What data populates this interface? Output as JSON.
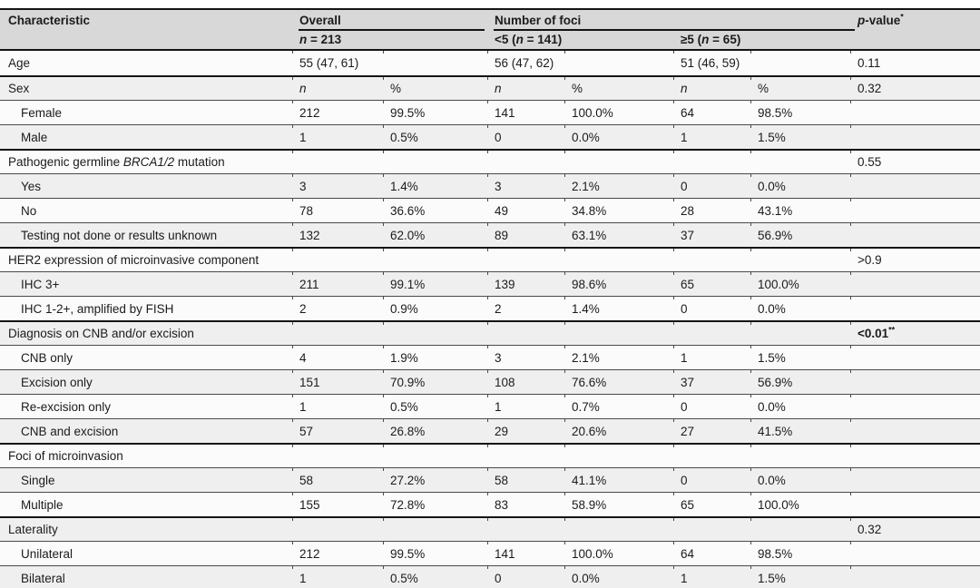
{
  "colors": {
    "header_bg": "#d8d8d8",
    "row_bg": "#fbfbfb",
    "stripe_bg": "#efefef",
    "rule_thin": "#4a4a4a",
    "rule_thick": "#141414",
    "text": "#1b1b1b"
  },
  "table": {
    "header": {
      "characteristic": "Characteristic",
      "overall_label": "Overall",
      "foci_label": "Number of foci",
      "pvalue_parts": [
        {
          "t": "p",
          "i": true
        },
        {
          "t": "-value"
        },
        {
          "t": "*",
          "sup": true
        }
      ],
      "overall_sub_parts": [
        {
          "t": "n",
          "i": true
        },
        {
          "t": " = 213"
        }
      ],
      "lt5_parts": [
        {
          "t": "<5 ("
        },
        {
          "t": "n",
          "i": true
        },
        {
          "t": " = 141)"
        }
      ],
      "ge5_parts": [
        {
          "t": "≥5 ("
        },
        {
          "t": "n",
          "i": true
        },
        {
          "t": " = 65)"
        }
      ]
    },
    "rows": [
      {
        "label": "Age",
        "indent": false,
        "section": false,
        "subhead": false,
        "cells": [
          "55 (47, 61)",
          "",
          "56 (47, 62)",
          "",
          "51 (46, 59)",
          ""
        ],
        "p": {
          "text": "0.11",
          "sup": "",
          "bold": false
        }
      },
      {
        "label": "Sex",
        "indent": false,
        "section": true,
        "subhead": true,
        "cells": [
          "n",
          "%",
          "n",
          "%",
          "n",
          "%"
        ],
        "p": {
          "text": "0.32",
          "sup": "",
          "bold": false
        }
      },
      {
        "label": "Female",
        "indent": true,
        "section": false,
        "subhead": false,
        "cells": [
          "212",
          "99.5%",
          "141",
          "100.0%",
          "64",
          "98.5%"
        ],
        "p": null
      },
      {
        "label": "Male",
        "indent": true,
        "section": false,
        "subhead": false,
        "cells": [
          "1",
          "0.5%",
          "0",
          "0.0%",
          "1",
          "1.5%"
        ],
        "p": null
      },
      {
        "label_parts": [
          {
            "t": "Pathogenic germline "
          },
          {
            "t": "BRCA1/2",
            "i": true
          },
          {
            "t": " mutation"
          }
        ],
        "indent": false,
        "section": true,
        "subhead": false,
        "cells": [
          "",
          "",
          "",
          "",
          "",
          ""
        ],
        "p": {
          "text": "0.55",
          "sup": "",
          "bold": false
        }
      },
      {
        "label": "Yes",
        "indent": true,
        "section": false,
        "subhead": false,
        "cells": [
          "3",
          "1.4%",
          "3",
          "2.1%",
          "0",
          "0.0%"
        ],
        "p": null
      },
      {
        "label": "No",
        "indent": true,
        "section": false,
        "subhead": false,
        "cells": [
          "78",
          "36.6%",
          "49",
          "34.8%",
          "28",
          "43.1%"
        ],
        "p": null
      },
      {
        "label": "Testing not done or results unknown",
        "indent": true,
        "section": false,
        "subhead": false,
        "cells": [
          "132",
          "62.0%",
          "89",
          "63.1%",
          "37",
          "56.9%"
        ],
        "p": null
      },
      {
        "label": "HER2 expression of microinvasive component",
        "indent": false,
        "section": true,
        "subhead": false,
        "cells": [
          "",
          "",
          "",
          "",
          "",
          ""
        ],
        "p": {
          "text": ">0.9",
          "sup": "",
          "bold": false
        }
      },
      {
        "label": "IHC 3+",
        "indent": true,
        "section": false,
        "subhead": false,
        "cells": [
          "211",
          "99.1%",
          "139",
          "98.6%",
          "65",
          "100.0%"
        ],
        "p": null
      },
      {
        "label": "IHC 1-2+, amplified by FISH",
        "indent": true,
        "section": false,
        "subhead": false,
        "cells": [
          "2",
          "0.9%",
          "2",
          "1.4%",
          "0",
          "0.0%"
        ],
        "p": null
      },
      {
        "label": "Diagnosis on CNB and/or excision",
        "indent": false,
        "section": true,
        "subhead": false,
        "cells": [
          "",
          "",
          "",
          "",
          "",
          ""
        ],
        "p": {
          "text": "<0.01",
          "sup": "**",
          "bold": true
        }
      },
      {
        "label": "CNB only",
        "indent": true,
        "section": false,
        "subhead": false,
        "cells": [
          "4",
          "1.9%",
          "3",
          "2.1%",
          "1",
          "1.5%"
        ],
        "p": null
      },
      {
        "label": "Excision only",
        "indent": true,
        "section": false,
        "subhead": false,
        "cells": [
          "151",
          "70.9%",
          "108",
          "76.6%",
          "37",
          "56.9%"
        ],
        "p": null
      },
      {
        "label": "Re-excision only",
        "indent": true,
        "section": false,
        "subhead": false,
        "cells": [
          "1",
          "0.5%",
          "1",
          "0.7%",
          "0",
          "0.0%"
        ],
        "p": null
      },
      {
        "label": "CNB and excision",
        "indent": true,
        "section": false,
        "subhead": false,
        "cells": [
          "57",
          "26.8%",
          "29",
          "20.6%",
          "27",
          "41.5%"
        ],
        "p": null
      },
      {
        "label": "Foci of microinvasion",
        "indent": false,
        "section": true,
        "subhead": false,
        "cells": [
          "",
          "",
          "",
          "",
          "",
          ""
        ],
        "p": null
      },
      {
        "label": "Single",
        "indent": true,
        "section": false,
        "subhead": false,
        "cells": [
          "58",
          "27.2%",
          "58",
          "41.1%",
          "0",
          "0.0%"
        ],
        "p": null
      },
      {
        "label": "Multiple",
        "indent": true,
        "section": false,
        "subhead": false,
        "cells": [
          "155",
          "72.8%",
          "83",
          "58.9%",
          "65",
          "100.0%"
        ],
        "p": null
      },
      {
        "label": "Laterality",
        "indent": false,
        "section": true,
        "subhead": false,
        "cells": [
          "",
          "",
          "",
          "",
          "",
          ""
        ],
        "p": {
          "text": "0.32",
          "sup": "",
          "bold": false
        }
      },
      {
        "label": "Unilateral",
        "indent": true,
        "section": false,
        "subhead": false,
        "cells": [
          "212",
          "99.5%",
          "141",
          "100.0%",
          "64",
          "98.5%"
        ],
        "p": null
      },
      {
        "label": "Bilateral",
        "indent": true,
        "section": false,
        "subhead": false,
        "cells": [
          "1",
          "0.5%",
          "0",
          "0.0%",
          "1",
          "1.5%"
        ],
        "p": null
      }
    ]
  }
}
